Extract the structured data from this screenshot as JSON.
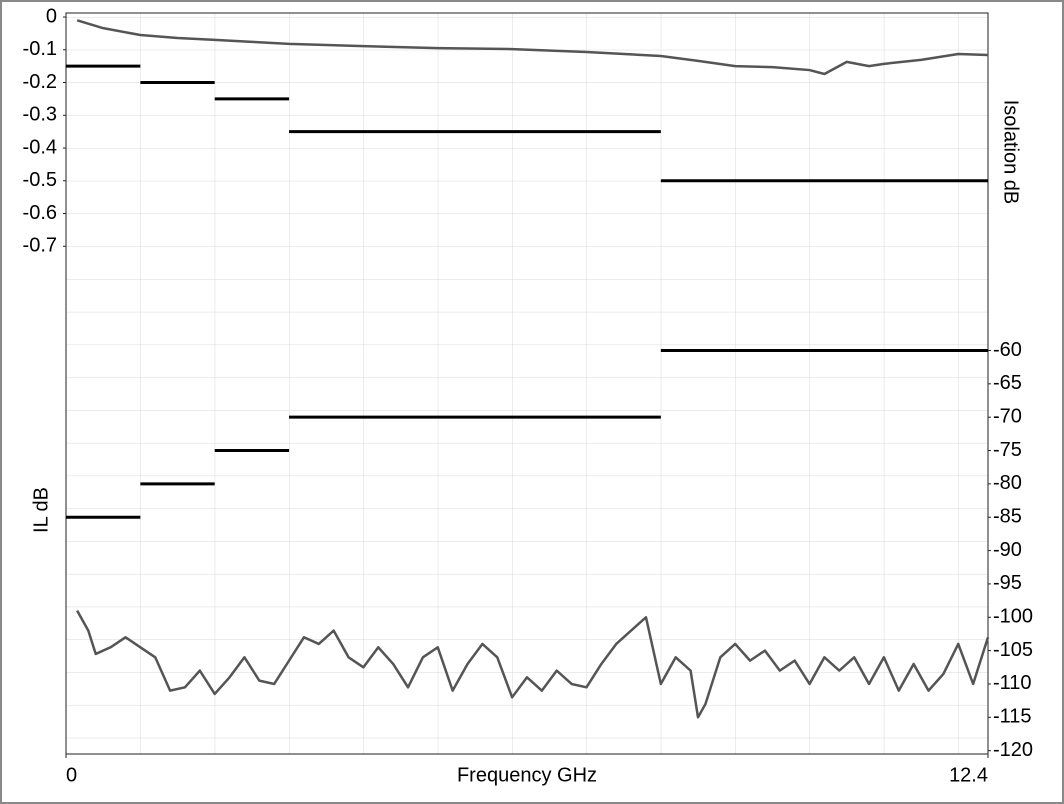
{
  "chart_data": {
    "type": "line",
    "xlabel": "Frequency GHz",
    "ylabel": "IL dB",
    "y2label": "Isolation dB",
    "xlim": [
      0,
      12.4
    ],
    "xticks": [
      0,
      12.4
    ],
    "ylim": [
      -2.25,
      0
    ],
    "yticks": [
      0,
      -0.1,
      -0.2,
      -0.3,
      -0.4,
      -0.5,
      -0.6,
      -0.7
    ],
    "y2lim": [
      -120.5,
      -10
    ],
    "y2ticks": [
      -60,
      -65,
      -70,
      -75,
      -80,
      -85,
      -90,
      -95,
      -100,
      -105,
      -110,
      -115,
      -120
    ],
    "grid": true,
    "series": [
      {
        "color": "#555555",
        "x": [
          0.15,
          0.5,
          1,
          1.5,
          2,
          2.5,
          3,
          4,
          5,
          6,
          7,
          8,
          8.5,
          9,
          9.5,
          10,
          10.2,
          10.5,
          10.8,
          11,
          11.5,
          12,
          12.4
        ],
        "values": [
          -0.01,
          -0.034,
          -0.055,
          -0.064,
          -0.07,
          -0.076,
          -0.082,
          -0.089,
          -0.095,
          -0.098,
          -0.107,
          -0.119,
          -0.134,
          -0.15,
          -0.153,
          -0.162,
          -0.174,
          -0.137,
          -0.15,
          -0.143,
          -0.131,
          -0.113,
          -0.116
        ]
      },
      {
        "color": "#000000",
        "style": "segments",
        "x": [
          0,
          1,
          1,
          2,
          2,
          3,
          3,
          8,
          8,
          12.4
        ],
        "values": [
          -0.15,
          -0.15,
          -0.2,
          -0.2,
          -0.25,
          -0.25,
          -0.35,
          -0.35,
          -0.5,
          -0.5
        ]
      },
      {
        "color": "#555555",
        "axis": "y2",
        "x": [
          0.15,
          0.3,
          0.4,
          0.6,
          0.8,
          1.0,
          1.2,
          1.4,
          1.6,
          1.8,
          2.0,
          2.2,
          2.4,
          2.6,
          2.8,
          3.0,
          3.2,
          3.4,
          3.6,
          3.8,
          4.0,
          4.2,
          4.4,
          4.6,
          4.8,
          5.0,
          5.2,
          5.4,
          5.6,
          5.8,
          6.0,
          6.2,
          6.4,
          6.6,
          6.8,
          7.0,
          7.2,
          7.4,
          7.6,
          7.8,
          8.0,
          8.2,
          8.4,
          8.5,
          8.6,
          8.8,
          9.0,
          9.2,
          9.4,
          9.6,
          9.8,
          10.0,
          10.2,
          10.4,
          10.6,
          10.8,
          11.0,
          11.2,
          11.4,
          11.6,
          11.8,
          12.0,
          12.2,
          12.4
        ],
        "values": [
          -99,
          -102,
          -105.5,
          -104.5,
          -103,
          -104.5,
          -106,
          -111,
          -110.5,
          -108,
          -111.5,
          -109,
          -106,
          -109.5,
          -110,
          -106.5,
          -103,
          -104,
          -102,
          -106,
          -107.5,
          -104.5,
          -107,
          -110.5,
          -106,
          -104.5,
          -111,
          -107,
          -104,
          -106,
          -112,
          -109,
          -111,
          -108,
          -110,
          -110.5,
          -107,
          -104,
          -102,
          -100,
          -110,
          -106,
          -108,
          -115,
          -113,
          -106,
          -104,
          -106.5,
          -105,
          -108,
          -106.5,
          -110,
          -106,
          -108,
          -106,
          -110,
          -106,
          -111,
          -107,
          -111,
          -108.5,
          -104,
          -110,
          -103
        ]
      },
      {
        "color": "#000000",
        "axis": "y2",
        "style": "segments",
        "x": [
          0,
          1,
          1,
          2,
          2,
          3,
          3,
          8,
          8,
          12.4
        ],
        "values": [
          -85,
          -85,
          -80,
          -80,
          -75,
          -75,
          -70,
          -70,
          -60,
          -60
        ]
      }
    ]
  }
}
